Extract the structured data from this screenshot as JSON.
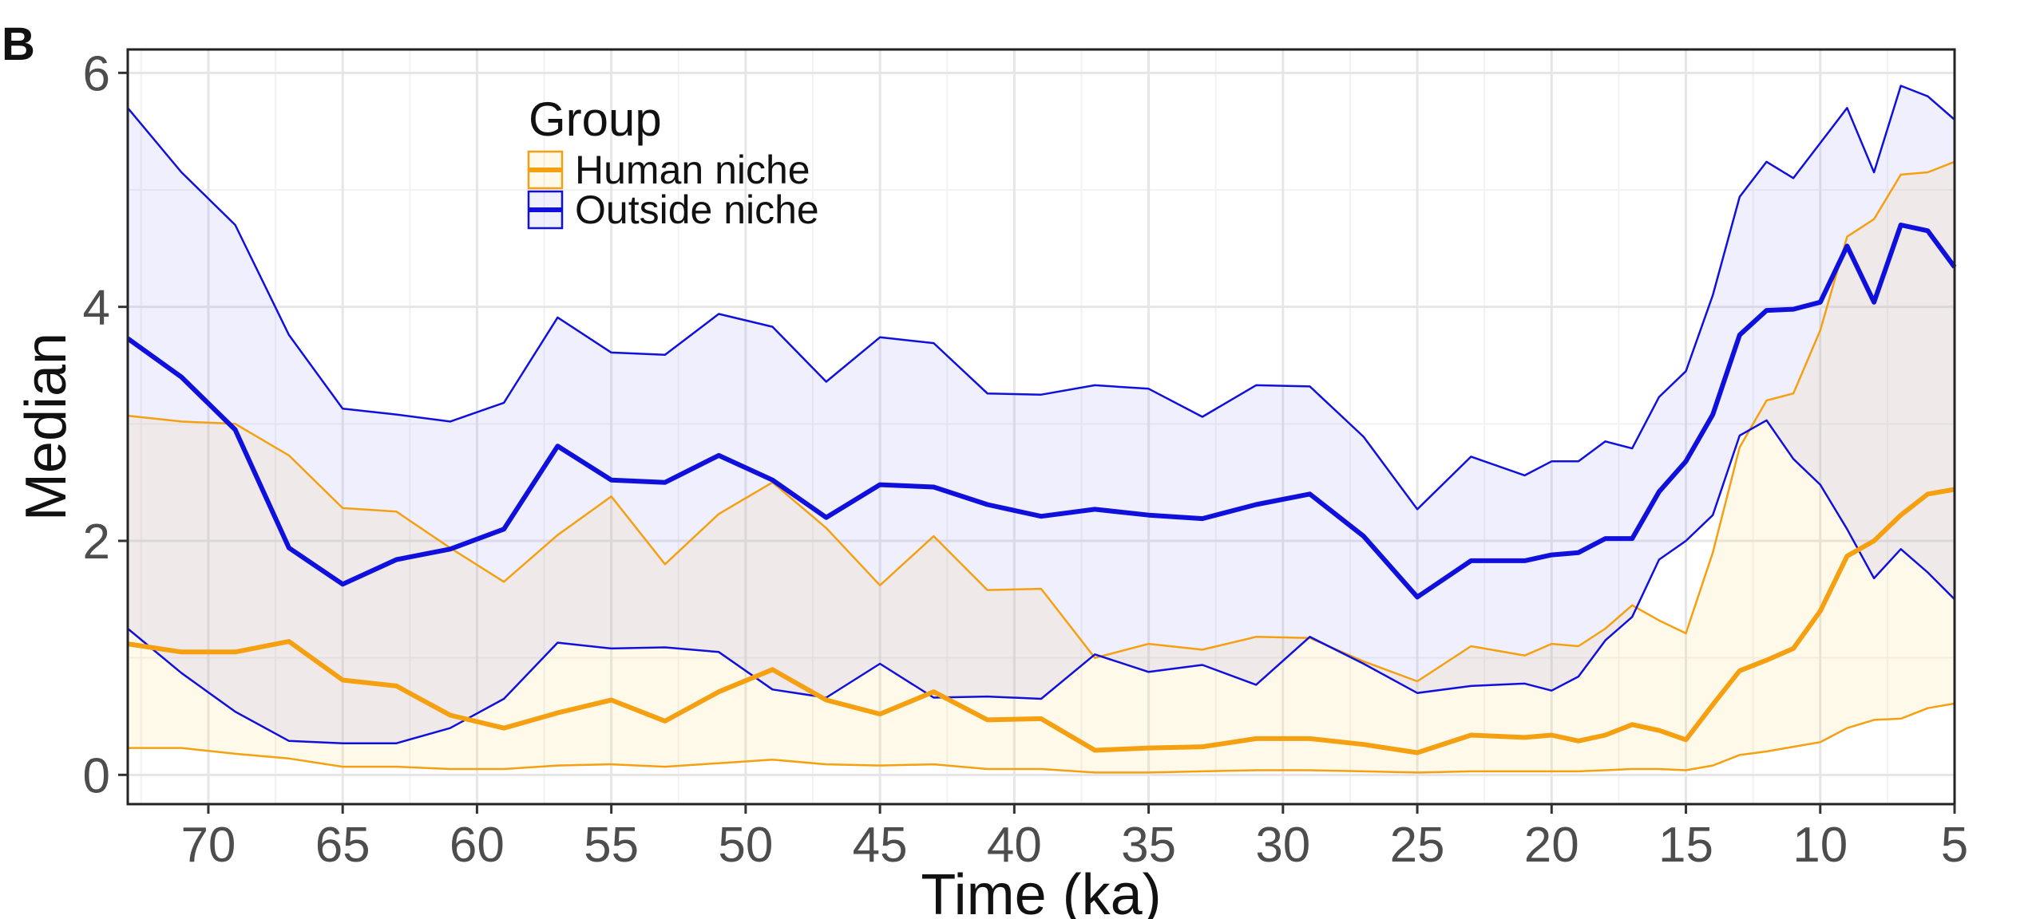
{
  "panel_label": "B",
  "chart_data": {
    "type": "line",
    "xlabel": "Time (ka)",
    "ylabel": "Median",
    "x_reversed": true,
    "xlim": [
      73,
      5
    ],
    "ylim": [
      -0.25,
      6.2
    ],
    "x_ticks": [
      70,
      65,
      60,
      55,
      50,
      45,
      40,
      35,
      30,
      25,
      20,
      15,
      10,
      5
    ],
    "y_ticks": [
      0,
      2,
      4,
      6
    ],
    "grid": true,
    "legend": {
      "title": "Group",
      "position": "top-left",
      "entries": [
        "Human niche",
        "Outside niche"
      ]
    },
    "x": [
      73,
      71,
      69,
      67,
      65,
      63,
      61,
      59,
      57,
      55,
      53,
      51,
      49,
      47,
      45,
      43,
      41,
      39,
      37,
      35,
      33,
      31,
      29,
      27,
      25,
      23,
      21,
      20,
      19,
      18,
      17,
      16,
      15,
      14,
      13,
      12,
      11,
      10,
      9,
      8,
      7,
      6,
      5
    ],
    "series": [
      {
        "name": "Human niche",
        "color": "#F5A010",
        "median": [
          1.12,
          1.05,
          1.05,
          1.14,
          0.81,
          0.76,
          0.51,
          0.4,
          0.53,
          0.64,
          0.46,
          0.71,
          0.9,
          0.64,
          0.52,
          0.71,
          0.47,
          0.48,
          0.21,
          0.23,
          0.24,
          0.31,
          0.31,
          0.26,
          0.19,
          0.34,
          0.32,
          0.34,
          0.29,
          0.34,
          0.43,
          0.38,
          0.3,
          0.6,
          0.89,
          0.98,
          1.08,
          1.4,
          1.87,
          2.0,
          2.22,
          2.4,
          2.44
        ],
        "upper": [
          3.07,
          3.02,
          3.0,
          2.73,
          2.28,
          2.25,
          1.94,
          1.65,
          2.05,
          2.38,
          1.8,
          2.23,
          2.5,
          2.11,
          1.62,
          2.04,
          1.58,
          1.59,
          1.0,
          1.12,
          1.07,
          1.18,
          1.17,
          0.97,
          0.8,
          1.1,
          1.02,
          1.12,
          1.1,
          1.25,
          1.45,
          1.32,
          1.21,
          1.9,
          2.8,
          3.2,
          3.26,
          3.8,
          4.6,
          4.75,
          5.13,
          5.15,
          5.24
        ],
        "lower": [
          0.23,
          0.23,
          0.18,
          0.14,
          0.07,
          0.07,
          0.05,
          0.05,
          0.08,
          0.09,
          0.07,
          0.1,
          0.13,
          0.09,
          0.08,
          0.09,
          0.05,
          0.05,
          0.02,
          0.02,
          0.03,
          0.04,
          0.04,
          0.03,
          0.02,
          0.03,
          0.03,
          0.03,
          0.03,
          0.04,
          0.05,
          0.05,
          0.04,
          0.08,
          0.17,
          0.2,
          0.24,
          0.28,
          0.4,
          0.47,
          0.48,
          0.57,
          0.61
        ]
      },
      {
        "name": "Outside niche",
        "color": "#1010DD",
        "median": [
          3.73,
          3.4,
          2.95,
          1.94,
          1.63,
          1.84,
          1.93,
          2.1,
          2.81,
          2.52,
          2.5,
          2.73,
          2.52,
          2.2,
          2.48,
          2.46,
          2.31,
          2.21,
          2.27,
          2.22,
          2.19,
          2.31,
          2.4,
          2.04,
          1.52,
          1.83,
          1.83,
          1.88,
          1.9,
          2.02,
          2.02,
          2.42,
          2.68,
          3.08,
          3.76,
          3.97,
          3.98,
          4.04,
          4.52,
          4.04,
          4.7,
          4.65,
          4.34
        ],
        "upper": [
          5.7,
          5.15,
          4.7,
          3.76,
          3.13,
          3.08,
          3.02,
          3.18,
          3.91,
          3.61,
          3.59,
          3.94,
          3.83,
          3.36,
          3.74,
          3.69,
          3.26,
          3.25,
          3.33,
          3.3,
          3.06,
          3.33,
          3.32,
          2.89,
          2.27,
          2.72,
          2.56,
          2.68,
          2.68,
          2.85,
          2.79,
          3.23,
          3.45,
          4.1,
          4.94,
          5.24,
          5.1,
          5.4,
          5.7,
          5.15,
          5.89,
          5.8,
          5.6
        ],
        "lower": [
          1.25,
          0.87,
          0.54,
          0.29,
          0.27,
          0.27,
          0.4,
          0.65,
          1.13,
          1.08,
          1.09,
          1.05,
          0.73,
          0.66,
          0.95,
          0.66,
          0.67,
          0.65,
          1.03,
          0.88,
          0.94,
          0.77,
          1.18,
          0.95,
          0.7,
          0.76,
          0.78,
          0.72,
          0.84,
          1.15,
          1.35,
          1.84,
          2.0,
          2.22,
          2.9,
          3.03,
          2.7,
          2.48,
          2.1,
          1.68,
          1.93,
          1.73,
          1.5
        ]
      }
    ]
  }
}
